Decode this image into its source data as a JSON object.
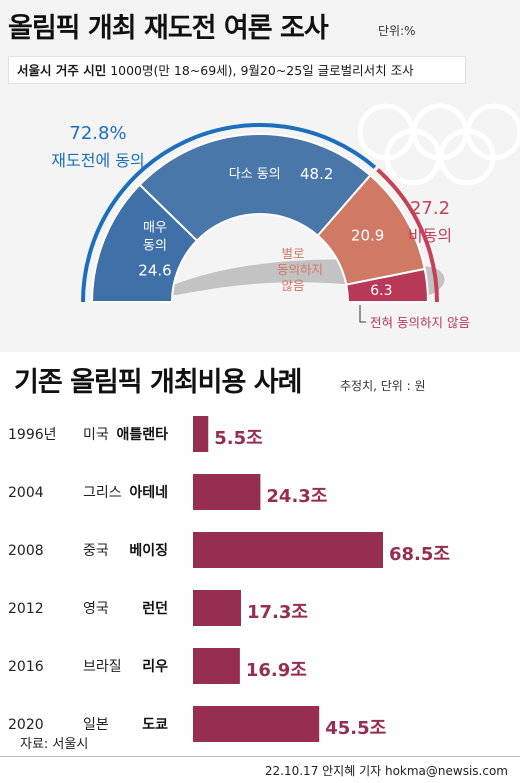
{
  "title": "올림픽 개최 재도전 여론 조사",
  "unit": "단위:%",
  "survey": {
    "target": "서울시 거주 시민",
    "details": "1000명(만 18~69세), 9월20~25일 글로벌리서치 조사"
  },
  "headline_agree": {
    "value": "72.8%",
    "label": "재도전에 동의"
  },
  "headline_oppose": {
    "value": "27.2",
    "label": "비동의"
  },
  "colors": {
    "strong_agree": "#3f70a8",
    "agree": "#4a77aa",
    "disagree": "#d07a66",
    "strong_disagree": "#b73957",
    "agree_accent": "#1b6fbd",
    "oppose_accent": "#c44158",
    "bar": "#962e52",
    "bar_label": "#962e52"
  },
  "chart_data": [
    {
      "type": "pie",
      "variant": "half-donut",
      "unit": "%",
      "slices": [
        {
          "label": "매우 동의",
          "value": 24.6
        },
        {
          "label": "다소 동의",
          "value": 48.2
        },
        {
          "label": "별로 동의하지 않음",
          "value": 20.9
        },
        {
          "label": "전혀 동의하지 않음",
          "value": 6.3
        }
      ]
    },
    {
      "type": "bar",
      "orientation": "horizontal",
      "title": "기존 올림픽 개최비용 사례",
      "unit_note": "추정치, 단위 : 원",
      "categories": [
        "1996년미국 애틀랜타",
        "2004 그리스 아테네",
        "2008 중국 베이징",
        "2012 영국 런던",
        "2016 브라질 리우",
        "2020 일본 도쿄"
      ],
      "rows": [
        {
          "year": "1996년",
          "country": "미국",
          "city": "애틀랜타",
          "value": 5.5,
          "label": "5.5조"
        },
        {
          "year": "2004",
          "country": "그리스",
          "city": "아테네",
          "value": 24.3,
          "label": "24.3조"
        },
        {
          "year": "2008",
          "country": "중국",
          "city": "베이징",
          "value": 68.5,
          "label": "68.5조"
        },
        {
          "year": "2012",
          "country": "영국",
          "city": "런던",
          "value": 17.3,
          "label": "17.3조"
        },
        {
          "year": "2016",
          "country": "브라질",
          "city": "리우",
          "value": 16.9,
          "label": "16.9조"
        },
        {
          "year": "2020",
          "country": "일본",
          "city": "도쿄",
          "value": 45.5,
          "label": "45.5조"
        }
      ]
    }
  ],
  "cost_title": "기존 올림픽 개최비용 사례",
  "cost_unit": "추정치, 단위 : 원",
  "source": "자료: 서울시",
  "credit": "22.10.17 안지혜 기자 hokma@newsis.com"
}
